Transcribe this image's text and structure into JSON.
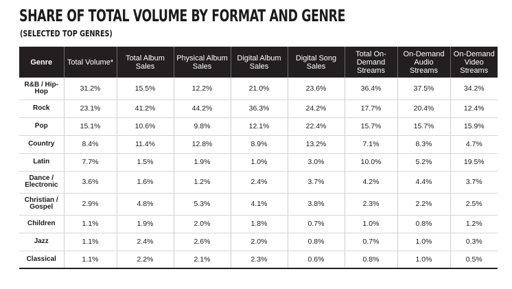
{
  "title": "SHARE OF TOTAL VOLUME BY FORMAT AND GENRE",
  "subtitle": "(SELECTED TOP GENRES)",
  "columns": [
    "Genre",
    "Total Volume*",
    "Total Album Sales",
    "Physical Album Sales",
    "Digital Album Sales",
    "Digital Song Sales",
    "Total On-Demand Streams",
    "On-Demand Audio Streams",
    "On-Demand Video Streams"
  ],
  "rows": [
    {
      "genre": "R&B / Hip-Hop",
      "values": [
        "31.2%",
        "15.5%",
        "12.2%",
        "21.0%",
        "23.6%",
        "36.4%",
        "37.5%",
        "34.2%"
      ]
    },
    {
      "genre": "Rock",
      "values": [
        "23.1%",
        "41.2%",
        "44.2%",
        "36.3%",
        "24.2%",
        "17.7%",
        "20.4%",
        "12.4%"
      ]
    },
    {
      "genre": "Pop",
      "values": [
        "15.1%",
        "10.6%",
        "9.8%",
        "12.1%",
        "22.4%",
        "15.7%",
        "15.7%",
        "15.9%"
      ]
    },
    {
      "genre": "Country",
      "values": [
        "8.4%",
        "11.4%",
        "12.8%",
        "8.9%",
        "13.2%",
        "7.1%",
        "8.3%",
        "4.7%"
      ]
    },
    {
      "genre": "Latin",
      "values": [
        "7.7%",
        "1.5%",
        "1.9%",
        "1.0%",
        "3.0%",
        "10.0%",
        "5.2%",
        "19.5%"
      ]
    },
    {
      "genre": "Dance / Electronic",
      "values": [
        "3.6%",
        "1.6%",
        "1.2%",
        "2.4%",
        "3.7%",
        "4.2%",
        "4.4%",
        "3.7%"
      ]
    },
    {
      "genre": "Christian / Gospel",
      "values": [
        "2.9%",
        "4.8%",
        "5.3%",
        "4.1%",
        "3.8%",
        "2.3%",
        "2.2%",
        "2.5%"
      ]
    },
    {
      "genre": "Children",
      "values": [
        "1.1%",
        "1.9%",
        "2.0%",
        "1.8%",
        "0.7%",
        "1.0%",
        "0.8%",
        "1.2%"
      ]
    },
    {
      "genre": "Jazz",
      "values": [
        "1.1%",
        "2.4%",
        "2.6%",
        "2.0%",
        "0.8%",
        "0.7%",
        "1.0%",
        "0.3%"
      ]
    },
    {
      "genre": "Classical",
      "values": [
        "1.1%",
        "2.2%",
        "2.1%",
        "2.3%",
        "0.6%",
        "0.8%",
        "1.0%",
        "0.5%"
      ]
    }
  ],
  "colors": {
    "header_bg": "#231f20",
    "header_text": "#ffffff",
    "grid": "#d6d6d6"
  }
}
